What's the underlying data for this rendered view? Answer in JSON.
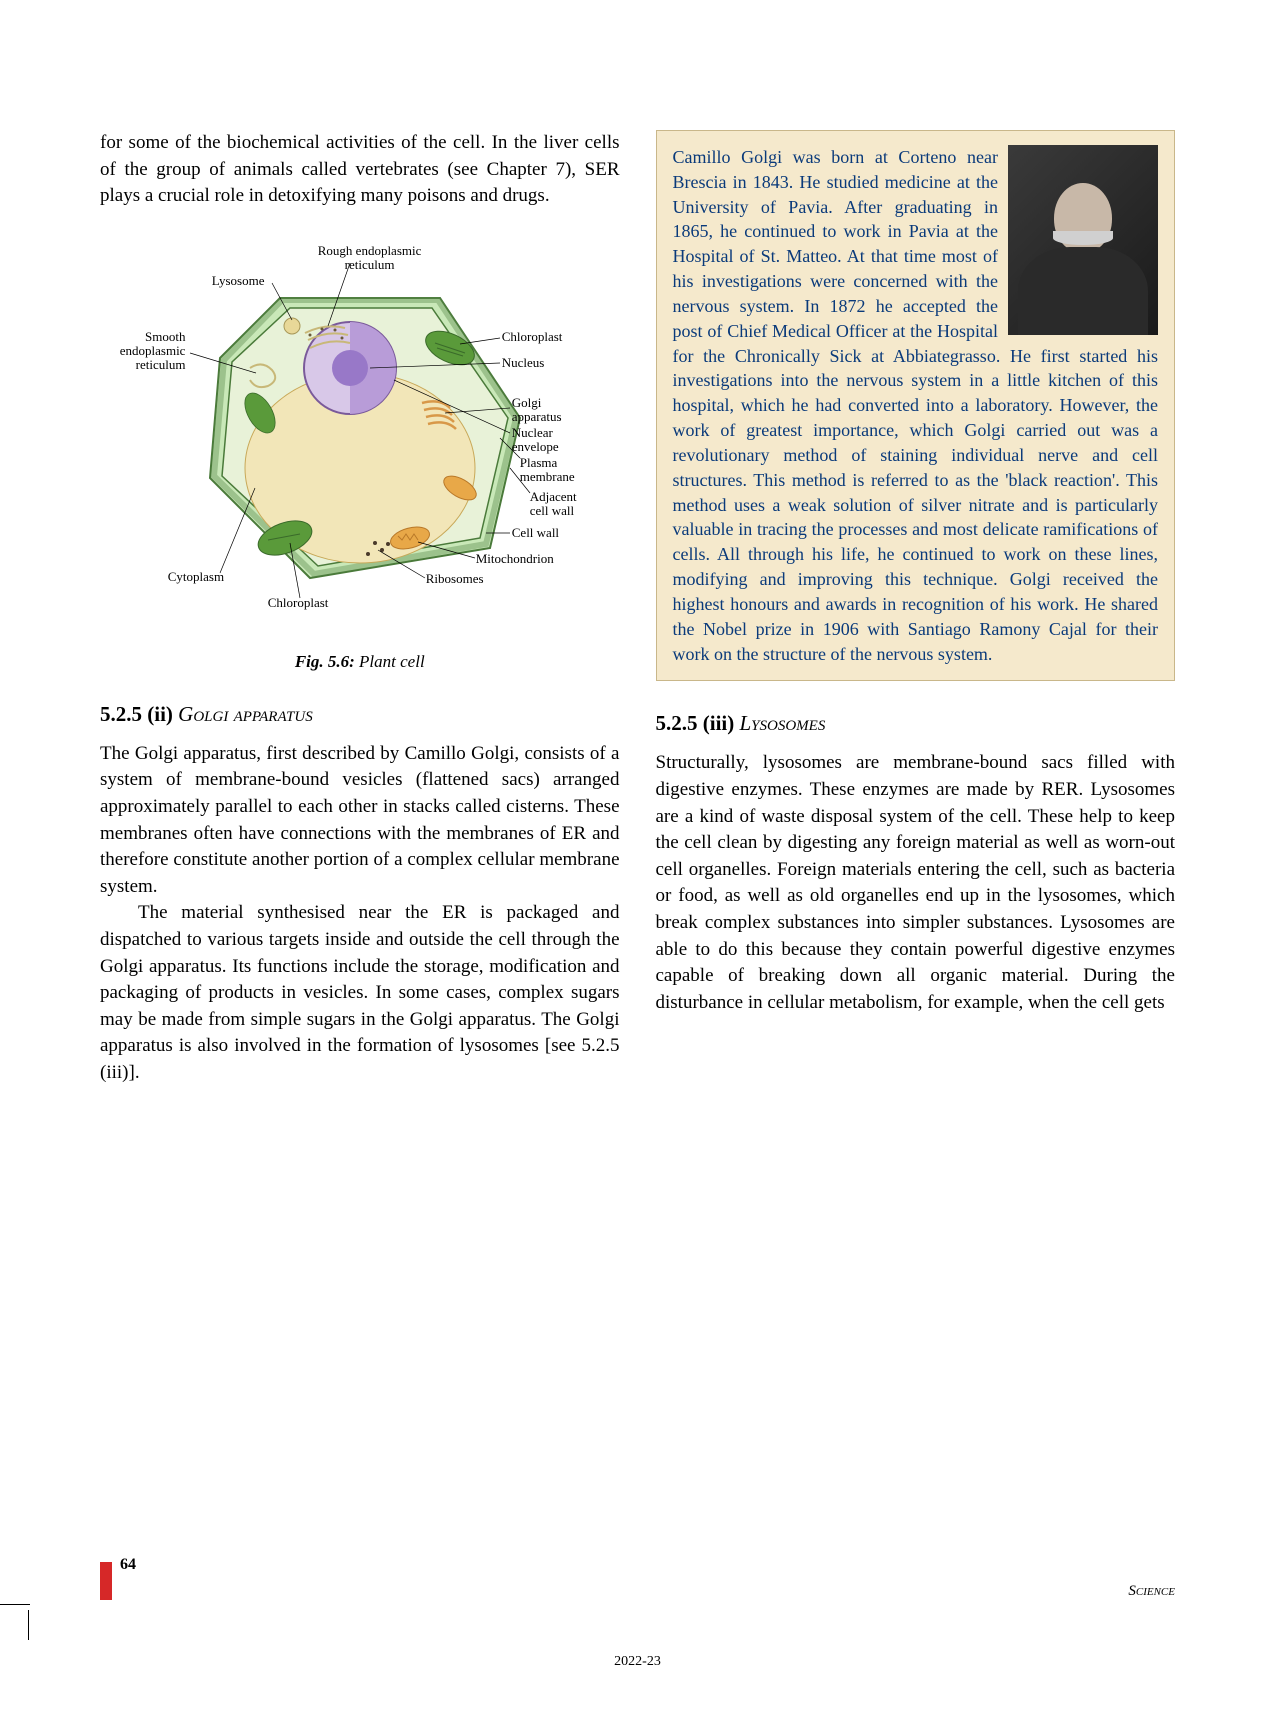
{
  "left_column": {
    "intro_paragraph": "for some of the biochemical activities of the cell. In the liver cells of the group of animals called vertebrates (see Chapter 7), SER plays a crucial role in detoxifying many poisons and drugs.",
    "figure": {
      "caption_prefix": "Fig. 5.6:",
      "caption_text": " Plant cell",
      "labels": {
        "rough_er": "Rough endoplasmic\nreticulum",
        "lysosome": "Lysosome",
        "smooth_er": "Smooth\nendoplasmic\nreticulum",
        "chloroplast_top": "Chloroplast",
        "nucleus": "Nucleus",
        "golgi": "Golgi\napparatus",
        "nuclear_env": "Nuclear\nenvelope",
        "plasma_mem": "Plasma\nmembrane",
        "adj_wall": "Adjacent\ncell wall",
        "cell_wall": "Cell wall",
        "mitochondrion": "Mitochondrion",
        "ribosomes": "Ribosomes",
        "cytoplasm": "Cytoplasm",
        "chloroplast_bot": "Chloroplast"
      }
    },
    "section_525ii": {
      "heading_num": "5.2.5 (ii) ",
      "heading_text": "Golgi apparatus",
      "para1": "The Golgi apparatus, first described by Camillo Golgi, consists of a system of membrane-bound vesicles (flattened sacs) arranged approximately parallel to each other in stacks called cisterns. These membranes often have connections with the membranes of ER and therefore constitute another portion of a complex cellular membrane system.",
      "para2": "The material synthesised near the ER is packaged and dispatched to various targets inside and outside the cell through the Golgi apparatus. Its functions include the storage, modification and packaging of products in vesicles. In some cases, complex sugars may be made from simple sugars in the Golgi apparatus. The Golgi apparatus is also involved in the formation of lysosomes [see 5.2.5 (iii)]."
    }
  },
  "right_column": {
    "bio_box": {
      "text": "Camillo Golgi was born at Corteno near Brescia in 1843. He studied medicine at the University of Pavia. After graduating in 1865, he continued to work in Pavia at the Hospital of St. Matteo. At that time most of his investigations were concerned with the nervous system. In 1872 he accepted the post of Chief Medical Officer at the Hospital for the Chronically Sick at Abbiategrasso. He first started his investigations into the nervous system in a little kitchen of this hospital, which he had converted into a laboratory. However, the work of greatest importance, which Golgi carried out was a revolutionary method of staining individual nerve and cell structures. This method is referred to as the 'black reaction'. This method uses a weak solution of silver nitrate and is particularly valuable in tracing the processes and most delicate ramifications of cells. All through his life, he continued to work on these lines, modifying and improving this technique. Golgi received the highest honours and awards in recognition of his work. He shared the Nobel prize in 1906 with Santiago Ramony Cajal for their work on the structure of the nervous system."
    },
    "section_525iii": {
      "heading_num": "5.2.5 (iii) ",
      "heading_text": "Lysosomes",
      "para1": "Structurally, lysosomes are membrane-bound sacs filled with digestive enzymes. These enzymes are made by RER. Lysosomes are a kind of waste disposal system of the cell. These help to keep the cell clean by digesting any foreign material as well as worn-out cell organelles. Foreign materials entering the cell, such as bacteria or food, as well as old organelles end up in the lysosomes, which break complex substances into simpler substances. Lysosomes are able to do this because they contain powerful digestive enzymes capable of breaking down all organic material. During the disturbance in cellular metabolism, for example, when the cell gets"
    }
  },
  "footer": {
    "page_number": "64",
    "subject": "Science",
    "year": "2022-23"
  },
  "diagram_colors": {
    "cell_wall": "#c9e8b8",
    "cell_wall_stroke": "#4a7a3a",
    "cytoplasm": "#e8f2d8",
    "nucleus_outer": "#d8c8e8",
    "nucleus_inner": "#b89cd8",
    "vacuole": "#f2e6b8",
    "chloroplast": "#5a9a3a",
    "mito": "#e8a848",
    "golgi": "#d89848",
    "er": "#c8b878"
  }
}
